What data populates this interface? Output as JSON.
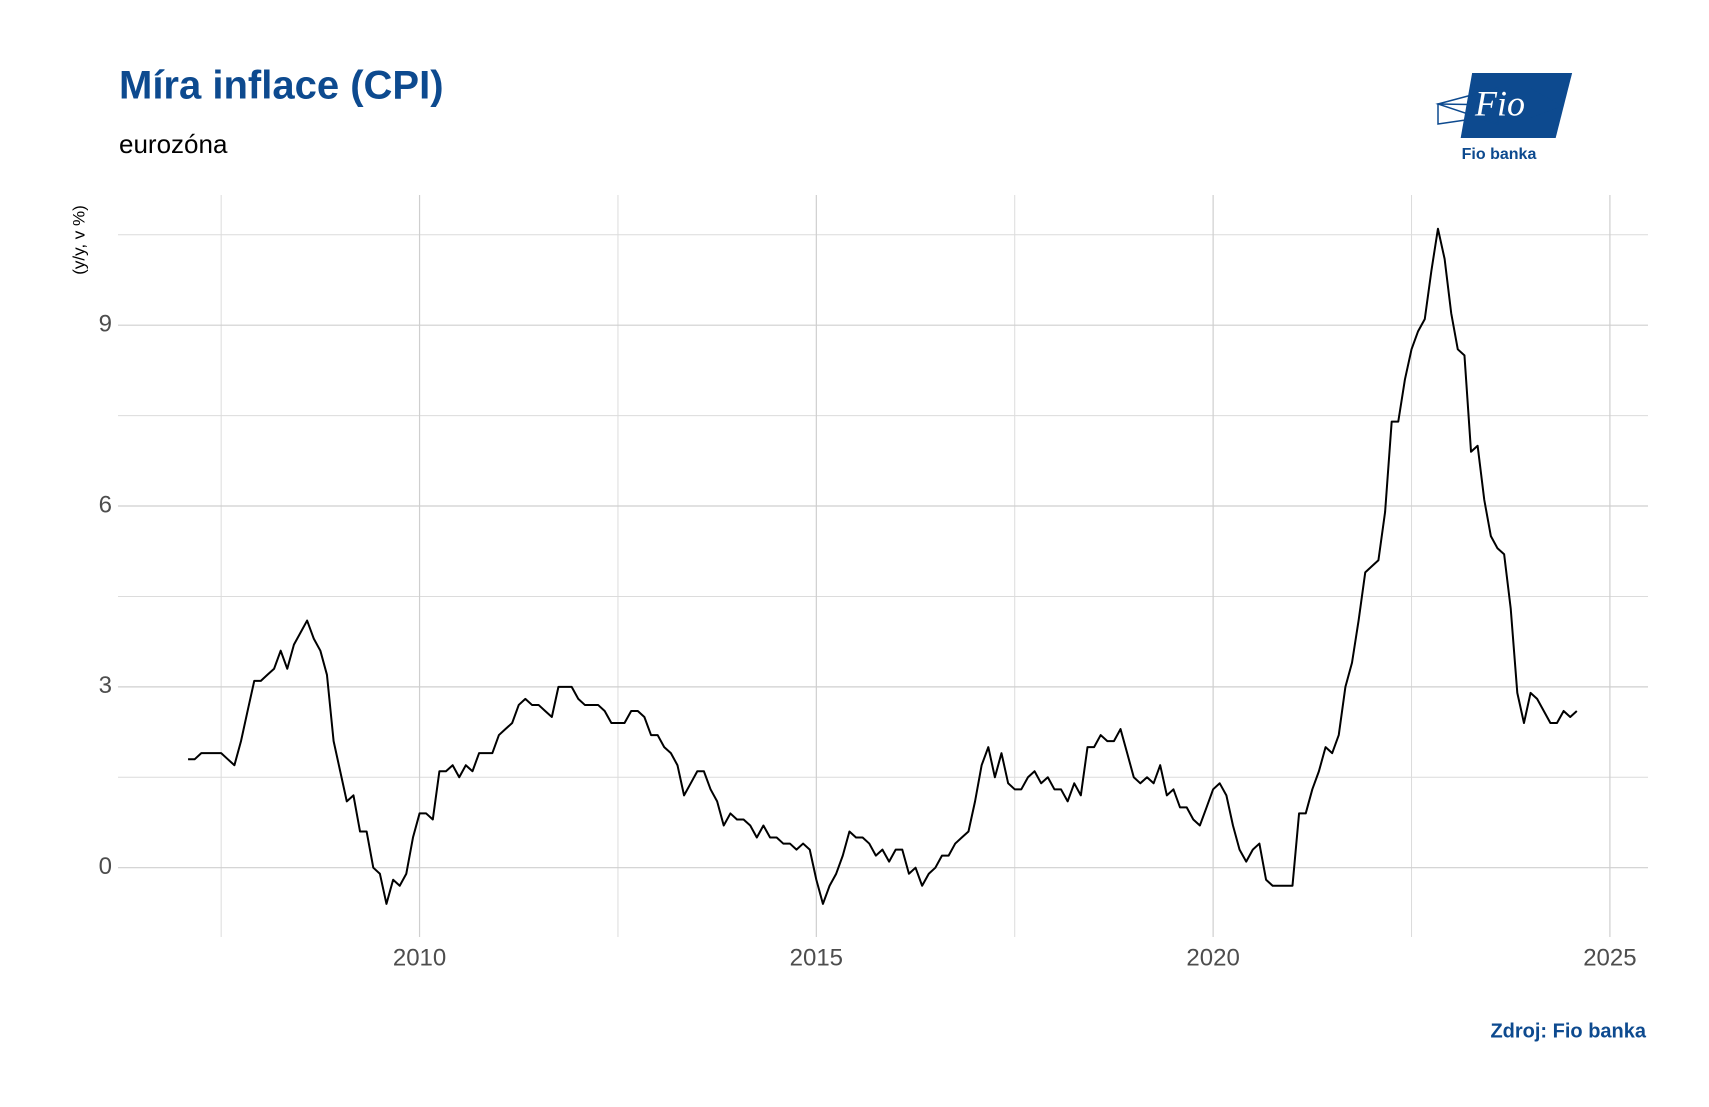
{
  "chart_data": {
    "type": "line",
    "title": "Míra inflace (CPI)",
    "subtitle": "eurozóna",
    "y_label": "(y/y, v %)",
    "source": "Zdroj: Fio banka",
    "logo": {
      "mark": "Fio",
      "name": "Fio banka"
    },
    "color": "#000000",
    "grid": true,
    "xlim": [
      2006.2,
      2025.48
    ],
    "xticks": [
      2010,
      2015,
      2020,
      2025
    ],
    "xminorticks": [
      2007.5,
      2012.5,
      2017.5,
      2022.5
    ],
    "ylim": [
      -1.15,
      11.16
    ],
    "yticks": [
      0,
      3,
      6,
      9
    ],
    "yminorticks": [
      1.5,
      4.5,
      7.5,
      10.5
    ],
    "x": [
      2007.083,
      2007.167,
      2007.25,
      2007.333,
      2007.417,
      2007.5,
      2007.583,
      2007.667,
      2007.75,
      2007.833,
      2007.917,
      2008,
      2008.083,
      2008.167,
      2008.25,
      2008.333,
      2008.417,
      2008.5,
      2008.583,
      2008.667,
      2008.75,
      2008.833,
      2008.917,
      2009,
      2009.083,
      2009.167,
      2009.25,
      2009.333,
      2009.417,
      2009.5,
      2009.583,
      2009.667,
      2009.75,
      2009.833,
      2009.917,
      2010,
      2010.083,
      2010.167,
      2010.25,
      2010.333,
      2010.417,
      2010.5,
      2010.583,
      2010.667,
      2010.75,
      2010.833,
      2010.917,
      2011,
      2011.083,
      2011.167,
      2011.25,
      2011.333,
      2011.417,
      2011.5,
      2011.583,
      2011.667,
      2011.75,
      2011.833,
      2011.917,
      2012,
      2012.083,
      2012.167,
      2012.25,
      2012.333,
      2012.417,
      2012.5,
      2012.583,
      2012.667,
      2012.75,
      2012.833,
      2012.917,
      2013,
      2013.083,
      2013.167,
      2013.25,
      2013.333,
      2013.417,
      2013.5,
      2013.583,
      2013.667,
      2013.75,
      2013.833,
      2013.917,
      2014,
      2014.083,
      2014.167,
      2014.25,
      2014.333,
      2014.417,
      2014.5,
      2014.583,
      2014.667,
      2014.75,
      2014.833,
      2014.917,
      2015,
      2015.083,
      2015.167,
      2015.25,
      2015.333,
      2015.417,
      2015.5,
      2015.583,
      2015.667,
      2015.75,
      2015.833,
      2015.917,
      2016,
      2016.083,
      2016.167,
      2016.25,
      2016.333,
      2016.417,
      2016.5,
      2016.583,
      2016.667,
      2016.75,
      2016.833,
      2016.917,
      2017,
      2017.083,
      2017.167,
      2017.25,
      2017.333,
      2017.417,
      2017.5,
      2017.583,
      2017.667,
      2017.75,
      2017.833,
      2017.917,
      2018,
      2018.083,
      2018.167,
      2018.25,
      2018.333,
      2018.417,
      2018.5,
      2018.583,
      2018.667,
      2018.75,
      2018.833,
      2018.917,
      2019,
      2019.083,
      2019.167,
      2019.25,
      2019.333,
      2019.417,
      2019.5,
      2019.583,
      2019.667,
      2019.75,
      2019.833,
      2019.917,
      2020,
      2020.083,
      2020.167,
      2020.25,
      2020.333,
      2020.417,
      2020.5,
      2020.583,
      2020.667,
      2020.75,
      2020.833,
      2020.917,
      2021,
      2021.083,
      2021.167,
      2021.25,
      2021.333,
      2021.417,
      2021.5,
      2021.583,
      2021.667,
      2021.75,
      2021.833,
      2021.917,
      2022,
      2022.083,
      2022.167,
      2022.25,
      2022.333,
      2022.417,
      2022.5,
      2022.583,
      2022.667,
      2022.75,
      2022.833,
      2022.917,
      2023,
      2023.083,
      2023.167,
      2023.25,
      2023.333,
      2023.417,
      2023.5,
      2023.583,
      2023.667,
      2023.75,
      2023.833,
      2023.917,
      2024,
      2024.083,
      2024.167,
      2024.25,
      2024.333,
      2024.417,
      2024.5,
      2024.583
    ],
    "values": [
      1.8,
      1.8,
      1.9,
      1.9,
      1.9,
      1.9,
      1.8,
      1.7,
      2.1,
      2.6,
      3.1,
      3.1,
      3.2,
      3.3,
      3.6,
      3.3,
      3.7,
      3.9,
      4.1,
      3.8,
      3.6,
      3.2,
      2.1,
      1.6,
      1.1,
      1.2,
      0.6,
      0.6,
      0.0,
      -0.1,
      -0.6,
      -0.2,
      -0.3,
      -0.1,
      0.5,
      0.9,
      0.9,
      0.8,
      1.6,
      1.6,
      1.7,
      1.5,
      1.7,
      1.6,
      1.9,
      1.9,
      1.9,
      2.2,
      2.3,
      2.4,
      2.7,
      2.8,
      2.7,
      2.7,
      2.6,
      2.5,
      3.0,
      3.0,
      3.0,
      2.8,
      2.7,
      2.7,
      2.7,
      2.6,
      2.4,
      2.4,
      2.4,
      2.6,
      2.6,
      2.5,
      2.2,
      2.2,
      2.0,
      1.9,
      1.7,
      1.2,
      1.4,
      1.6,
      1.6,
      1.3,
      1.1,
      0.7,
      0.9,
      0.8,
      0.8,
      0.7,
      0.5,
      0.7,
      0.5,
      0.5,
      0.4,
      0.4,
      0.3,
      0.4,
      0.3,
      -0.2,
      -0.6,
      -0.3,
      -0.1,
      0.2,
      0.6,
      0.5,
      0.5,
      0.4,
      0.2,
      0.3,
      0.1,
      0.3,
      0.3,
      -0.1,
      0.0,
      -0.3,
      -0.1,
      0.0,
      0.2,
      0.2,
      0.4,
      0.5,
      0.6,
      1.1,
      1.7,
      2.0,
      1.5,
      1.9,
      1.4,
      1.3,
      1.3,
      1.5,
      1.6,
      1.4,
      1.5,
      1.3,
      1.3,
      1.1,
      1.4,
      1.2,
      2.0,
      2.0,
      2.2,
      2.1,
      2.1,
      2.3,
      1.9,
      1.5,
      1.4,
      1.5,
      1.4,
      1.7,
      1.2,
      1.3,
      1.0,
      1.0,
      0.8,
      0.7,
      1.0,
      1.3,
      1.4,
      1.2,
      0.7,
      0.3,
      0.1,
      0.3,
      0.4,
      -0.2,
      -0.3,
      -0.3,
      -0.3,
      -0.3,
      0.9,
      0.9,
      1.3,
      1.6,
      2.0,
      1.9,
      2.2,
      3.0,
      3.4,
      4.1,
      4.9,
      5.0,
      5.1,
      5.9,
      7.4,
      7.4,
      8.1,
      8.6,
      8.9,
      9.1,
      9.9,
      10.6,
      10.1,
      9.2,
      8.6,
      8.5,
      6.9,
      7.0,
      6.1,
      5.5,
      5.3,
      5.2,
      4.3,
      2.9,
      2.4,
      2.9,
      2.8,
      2.6,
      2.4,
      2.4,
      2.6,
      2.5,
      2.6
    ]
  }
}
